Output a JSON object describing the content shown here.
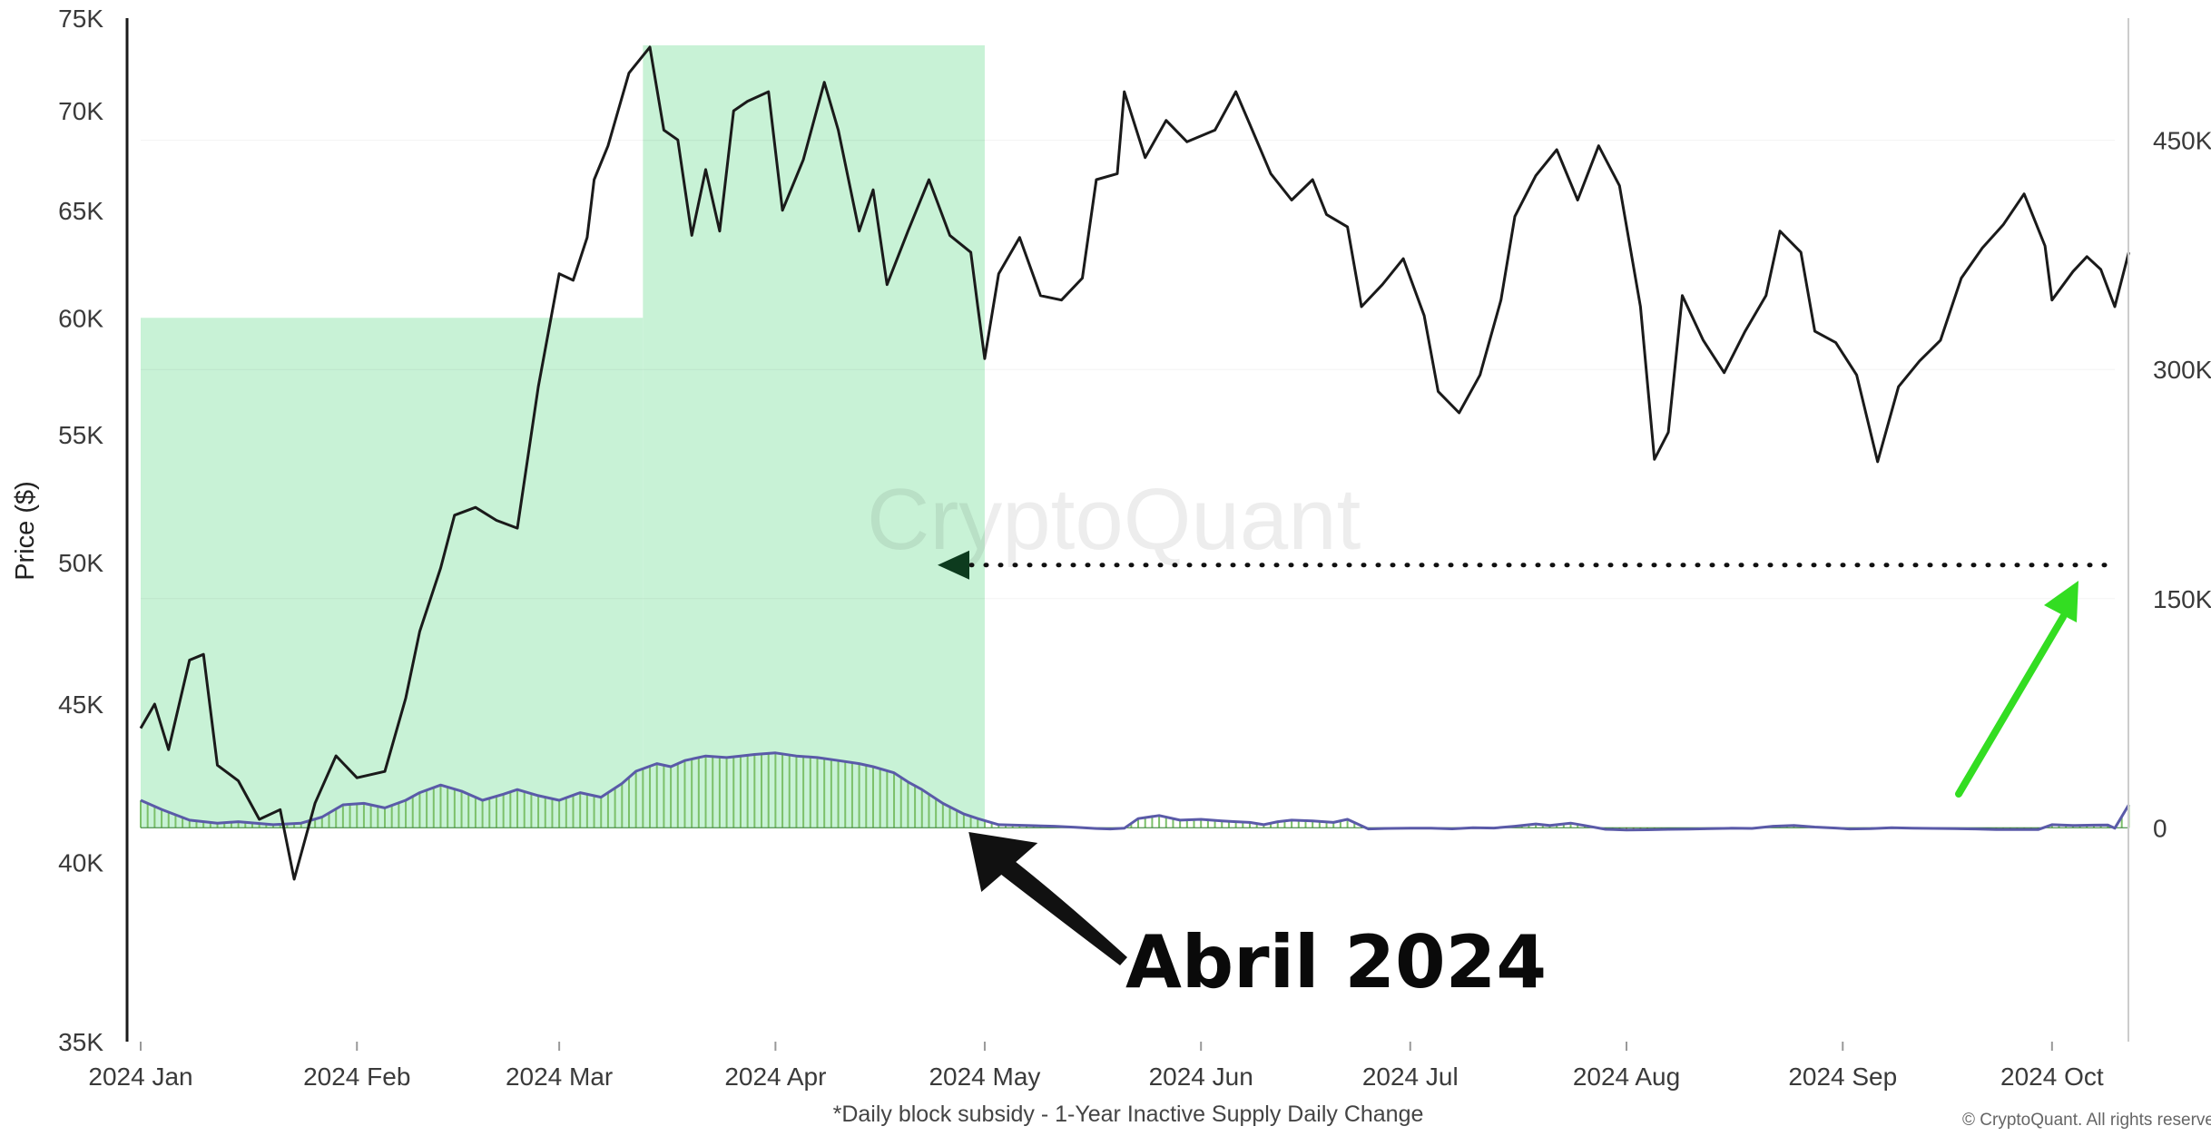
{
  "chart_data": {
    "type": "line",
    "xlabel": "*Daily block subsidy - 1-Year Inactive Supply Daily Change",
    "ylabel": "Price ($)",
    "watermark": "CryptoQuant",
    "copyright": "© CryptoQuant. All rights reserved",
    "x_ticks": [
      "2024 Jan",
      "2024 Feb",
      "2024 Mar",
      "2024 Apr",
      "2024 May",
      "2024 Jun",
      "2024 Jul",
      "2024 Aug",
      "2024 Sep",
      "2024 Oct"
    ],
    "x_range": [
      "2024-01-01",
      "2024-10-10"
    ],
    "y_left": {
      "ticks": [
        "75K",
        "70K",
        "65K",
        "60K",
        "55K",
        "50K",
        "45K",
        "40K",
        "35K"
      ],
      "ylim": [
        35000,
        75000
      ],
      "scale": "log"
    },
    "y_right": {
      "ticks": [
        "450K",
        "300K",
        "150K",
        "0"
      ],
      "ylim": [
        -140000,
        530000
      ]
    },
    "highlight_regions": [
      {
        "start": "2024-01-01",
        "end": "2024-03-13",
        "top_price": 60000,
        "color": "#c8f2d6"
      },
      {
        "start": "2024-03-13",
        "end": "2024-05-01",
        "top_price": 73500,
        "color": "#c8f2d6"
      }
    ],
    "annotation": {
      "text": "Abril 2024",
      "target_date": "2024-04-30",
      "reference_value": 172000
    },
    "series": [
      {
        "axis": "left",
        "color": "#1a1a1a",
        "points": [
          [
            "2024-01-01",
            44200
          ],
          [
            "2024-01-03",
            45000
          ],
          [
            "2024-01-05",
            43500
          ],
          [
            "2024-01-08",
            46500
          ],
          [
            "2024-01-10",
            46700
          ],
          [
            "2024-01-12",
            43000
          ],
          [
            "2024-01-15",
            42500
          ],
          [
            "2024-01-18",
            41300
          ],
          [
            "2024-01-21",
            41600
          ],
          [
            "2024-01-23",
            39500
          ],
          [
            "2024-01-26",
            41800
          ],
          [
            "2024-01-29",
            43300
          ],
          [
            "2024-02-01",
            42600
          ],
          [
            "2024-02-05",
            42800
          ],
          [
            "2024-02-08",
            45200
          ],
          [
            "2024-02-10",
            47500
          ],
          [
            "2024-02-13",
            49800
          ],
          [
            "2024-02-15",
            51800
          ],
          [
            "2024-02-18",
            52100
          ],
          [
            "2024-02-21",
            51600
          ],
          [
            "2024-02-24",
            51300
          ],
          [
            "2024-02-27",
            57000
          ],
          [
            "2024-03-01",
            62000
          ],
          [
            "2024-03-03",
            61700
          ],
          [
            "2024-03-05",
            63700
          ],
          [
            "2024-03-06",
            66500
          ],
          [
            "2024-03-08",
            68200
          ],
          [
            "2024-03-11",
            72000
          ],
          [
            "2024-03-14",
            73400
          ],
          [
            "2024-03-16",
            69000
          ],
          [
            "2024-03-18",
            68500
          ],
          [
            "2024-03-20",
            63800
          ],
          [
            "2024-03-22",
            67000
          ],
          [
            "2024-03-24",
            64000
          ],
          [
            "2024-03-26",
            70000
          ],
          [
            "2024-03-28",
            70500
          ],
          [
            "2024-03-31",
            71000
          ],
          [
            "2024-04-02",
            65000
          ],
          [
            "2024-04-05",
            67500
          ],
          [
            "2024-04-08",
            71500
          ],
          [
            "2024-04-10",
            69000
          ],
          [
            "2024-04-13",
            64000
          ],
          [
            "2024-04-15",
            66000
          ],
          [
            "2024-04-17",
            61500
          ],
          [
            "2024-04-20",
            64000
          ],
          [
            "2024-04-23",
            66500
          ],
          [
            "2024-04-26",
            63800
          ],
          [
            "2024-04-29",
            63000
          ],
          [
            "2024-04-30",
            60500
          ],
          [
            "2024-05-01",
            58200
          ],
          [
            "2024-05-03",
            62000
          ],
          [
            "2024-05-06",
            63700
          ],
          [
            "2024-05-09",
            61000
          ],
          [
            "2024-05-12",
            60800
          ],
          [
            "2024-05-15",
            61800
          ],
          [
            "2024-05-17",
            66500
          ],
          [
            "2024-05-20",
            66800
          ],
          [
            "2024-05-21",
            71000
          ],
          [
            "2024-05-24",
            67600
          ],
          [
            "2024-05-27",
            69500
          ],
          [
            "2024-05-30",
            68400
          ],
          [
            "2024-06-03",
            69000
          ],
          [
            "2024-06-06",
            71000
          ],
          [
            "2024-06-08",
            69300
          ],
          [
            "2024-06-11",
            66800
          ],
          [
            "2024-06-14",
            65500
          ],
          [
            "2024-06-17",
            66500
          ],
          [
            "2024-06-19",
            64800
          ],
          [
            "2024-06-22",
            64200
          ],
          [
            "2024-06-24",
            60500
          ],
          [
            "2024-06-27",
            61500
          ],
          [
            "2024-06-30",
            62700
          ],
          [
            "2024-07-03",
            60100
          ],
          [
            "2024-07-05",
            56800
          ],
          [
            "2024-07-08",
            55900
          ],
          [
            "2024-07-11",
            57500
          ],
          [
            "2024-07-14",
            60800
          ],
          [
            "2024-07-16",
            64700
          ],
          [
            "2024-07-19",
            66700
          ],
          [
            "2024-07-22",
            68000
          ],
          [
            "2024-07-25",
            65500
          ],
          [
            "2024-07-28",
            68200
          ],
          [
            "2024-07-31",
            66200
          ],
          [
            "2024-08-03",
            60500
          ],
          [
            "2024-08-05",
            54000
          ],
          [
            "2024-08-07",
            55100
          ],
          [
            "2024-08-09",
            61000
          ],
          [
            "2024-08-12",
            59000
          ],
          [
            "2024-08-15",
            57600
          ],
          [
            "2024-08-18",
            59400
          ],
          [
            "2024-08-21",
            61000
          ],
          [
            "2024-08-23",
            64000
          ],
          [
            "2024-08-26",
            63000
          ],
          [
            "2024-08-28",
            59400
          ],
          [
            "2024-08-31",
            58900
          ],
          [
            "2024-09-03",
            57500
          ],
          [
            "2024-09-06",
            53900
          ],
          [
            "2024-09-09",
            57000
          ],
          [
            "2024-09-12",
            58100
          ],
          [
            "2024-09-15",
            59000
          ],
          [
            "2024-09-18",
            61800
          ],
          [
            "2024-09-21",
            63200
          ],
          [
            "2024-09-24",
            64300
          ],
          [
            "2024-09-27",
            65800
          ],
          [
            "2024-09-30",
            63300
          ],
          [
            "2024-10-01",
            60800
          ],
          [
            "2024-10-04",
            62100
          ],
          [
            "2024-10-06",
            62800
          ],
          [
            "2024-10-08",
            62200
          ],
          [
            "2024-10-10",
            60500
          ],
          [
            "2024-10-12",
            63000
          ]
        ]
      },
      {
        "axis": "right",
        "color": "#5a5aa8",
        "points": [
          [
            "2024-01-01",
            18000
          ],
          [
            "2024-01-04",
            12000
          ],
          [
            "2024-01-08",
            5000
          ],
          [
            "2024-01-12",
            3000
          ],
          [
            "2024-01-15",
            4000
          ],
          [
            "2024-01-20",
            2000
          ],
          [
            "2024-01-24",
            3000
          ],
          [
            "2024-01-27",
            7000
          ],
          [
            "2024-01-30",
            15000
          ],
          [
            "2024-02-02",
            16000
          ],
          [
            "2024-02-05",
            13000
          ],
          [
            "2024-02-08",
            18000
          ],
          [
            "2024-02-10",
            23000
          ],
          [
            "2024-02-13",
            28000
          ],
          [
            "2024-02-16",
            24000
          ],
          [
            "2024-02-19",
            18000
          ],
          [
            "2024-02-22",
            22000
          ],
          [
            "2024-02-24",
            25000
          ],
          [
            "2024-02-27",
            21000
          ],
          [
            "2024-03-01",
            18000
          ],
          [
            "2024-03-04",
            23000
          ],
          [
            "2024-03-07",
            20000
          ],
          [
            "2024-03-10",
            29000
          ],
          [
            "2024-03-12",
            37000
          ],
          [
            "2024-03-15",
            42000
          ],
          [
            "2024-03-17",
            40000
          ],
          [
            "2024-03-19",
            44000
          ],
          [
            "2024-03-22",
            47000
          ],
          [
            "2024-03-25",
            46000
          ],
          [
            "2024-03-27",
            47000
          ],
          [
            "2024-03-29",
            48000
          ],
          [
            "2024-04-01",
            49000
          ],
          [
            "2024-04-04",
            47000
          ],
          [
            "2024-04-07",
            46000
          ],
          [
            "2024-04-10",
            44000
          ],
          [
            "2024-04-13",
            42000
          ],
          [
            "2024-04-15",
            40000
          ],
          [
            "2024-04-18",
            36000
          ],
          [
            "2024-04-20",
            30000
          ],
          [
            "2024-04-22",
            25000
          ],
          [
            "2024-04-25",
            16000
          ],
          [
            "2024-04-28",
            9000
          ],
          [
            "2024-04-30",
            6000
          ],
          [
            "2024-05-03",
            2000
          ],
          [
            "2024-05-07",
            1500
          ],
          [
            "2024-05-11",
            1000
          ],
          [
            "2024-05-14",
            300
          ],
          [
            "2024-05-17",
            -500
          ],
          [
            "2024-05-19",
            -800
          ],
          [
            "2024-05-21",
            -300
          ],
          [
            "2024-05-23",
            6000
          ],
          [
            "2024-05-26",
            8000
          ],
          [
            "2024-05-29",
            5000
          ],
          [
            "2024-06-01",
            5500
          ],
          [
            "2024-06-04",
            4500
          ],
          [
            "2024-06-06",
            4000
          ],
          [
            "2024-06-08",
            3500
          ],
          [
            "2024-06-10",
            2000
          ],
          [
            "2024-06-12",
            4000
          ],
          [
            "2024-06-14",
            5000
          ],
          [
            "2024-06-17",
            4500
          ],
          [
            "2024-06-20",
            3500
          ],
          [
            "2024-06-22",
            5500
          ],
          [
            "2024-06-25",
            -800
          ],
          [
            "2024-06-28",
            -400
          ],
          [
            "2024-07-01",
            -300
          ],
          [
            "2024-07-04",
            -300
          ],
          [
            "2024-07-07",
            -700
          ],
          [
            "2024-07-10",
            0
          ],
          [
            "2024-07-13",
            -200
          ],
          [
            "2024-07-16",
            1000
          ],
          [
            "2024-07-19",
            2500
          ],
          [
            "2024-07-21",
            1500
          ],
          [
            "2024-07-24",
            3000
          ],
          [
            "2024-07-26",
            1500
          ],
          [
            "2024-07-29",
            -1000
          ],
          [
            "2024-08-01",
            -1400
          ],
          [
            "2024-08-04",
            -1300
          ],
          [
            "2024-08-07",
            -1000
          ],
          [
            "2024-08-10",
            -900
          ],
          [
            "2024-08-13",
            -600
          ],
          [
            "2024-08-16",
            -300
          ],
          [
            "2024-08-19",
            -400
          ],
          [
            "2024-08-22",
            1000
          ],
          [
            "2024-08-25",
            1500
          ],
          [
            "2024-08-28",
            500
          ],
          [
            "2024-08-31",
            -200
          ],
          [
            "2024-09-02",
            -800
          ],
          [
            "2024-09-05",
            -600
          ],
          [
            "2024-09-08",
            0
          ],
          [
            "2024-09-11",
            -300
          ],
          [
            "2024-09-14",
            -400
          ],
          [
            "2024-09-17",
            -600
          ],
          [
            "2024-09-20",
            -800
          ],
          [
            "2024-09-23",
            -1200
          ],
          [
            "2024-09-26",
            -1100
          ],
          [
            "2024-09-29",
            -1200
          ],
          [
            "2024-10-01",
            2000
          ],
          [
            "2024-10-04",
            1500
          ],
          [
            "2024-10-07",
            1700
          ],
          [
            "2024-10-09",
            1800
          ],
          [
            "2024-10-10",
            -300
          ],
          [
            "2024-10-12",
            15000
          ]
        ]
      }
    ]
  }
}
